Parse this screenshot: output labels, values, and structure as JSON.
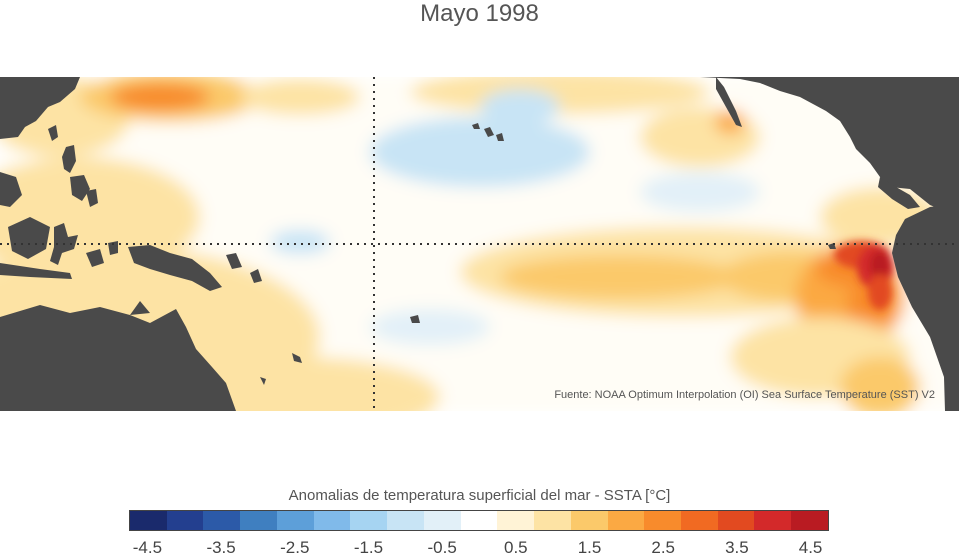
{
  "title": "Mayo 1998",
  "source": "Fuente: NOAA Optimum Interpolation (OI) Sea Surface Temperature (SST) V2",
  "legend": {
    "title": "Anomalias de temperatura superficial del mar - SSTA  [°C]",
    "colors": [
      "#1a2a6c",
      "#233f8f",
      "#2c5aa8",
      "#3f7fc0",
      "#5d9fd9",
      "#80baea",
      "#a6d4f2",
      "#c8e4f5",
      "#e2f0f8",
      "#ffffff",
      "#fff3d6",
      "#fde3a4",
      "#fbc96a",
      "#fba943",
      "#f88b2c",
      "#f16a22",
      "#e24a20",
      "#d3292a",
      "#b91b22"
    ],
    "ticks": [
      "-4.5",
      "-3.5",
      "-2.5",
      "-1.5",
      "-0.5",
      "0.5",
      "1.5",
      "2.5",
      "3.5",
      "4.5"
    ]
  },
  "map": {
    "land_color": "#4a4a4a",
    "gridline_color": "#333333"
  }
}
